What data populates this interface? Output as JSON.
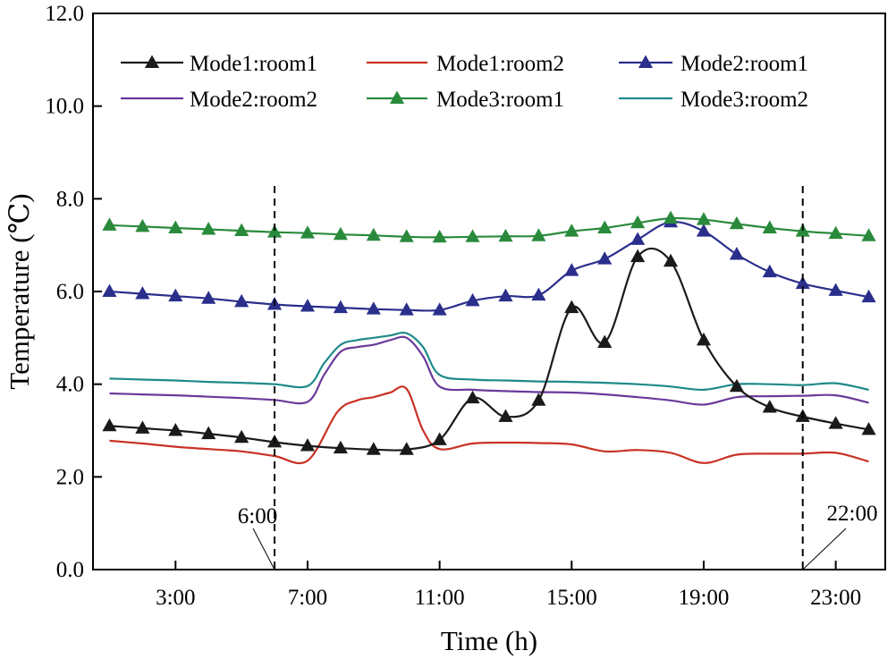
{
  "chart_data": {
    "type": "line",
    "title": "",
    "xlabel": "Time (h)",
    "ylabel": "Temperature (℃)",
    "ylim": [
      0,
      12
    ],
    "xlim": [
      0.5,
      24.5
    ],
    "y_ticks": [
      0,
      2,
      4,
      6,
      8,
      10,
      12
    ],
    "y_tick_labels": [
      "0.0",
      "2.0",
      "4.0",
      "6.0",
      "8.0",
      "10.0",
      "12.0"
    ],
    "x_ticks": [
      3,
      7,
      11,
      15,
      19,
      23
    ],
    "x_tick_labels": [
      "3:00",
      "7:00",
      "11:00",
      "15:00",
      "19:00",
      "23:00"
    ],
    "legend_position": "top",
    "grid": false,
    "series": [
      {
        "name": "Mode1:room1",
        "color": "#1a1a1a",
        "marker": "triangle",
        "smooth": true,
        "x": [
          1,
          2,
          3,
          4,
          5,
          6,
          7,
          8,
          9,
          10,
          11,
          12,
          13,
          14,
          15,
          16,
          17,
          18,
          19,
          20,
          21,
          22,
          23,
          24
        ],
        "values": [
          3.1,
          3.05,
          3.0,
          2.93,
          2.85,
          2.75,
          2.67,
          2.62,
          2.59,
          2.59,
          2.8,
          3.7,
          3.3,
          3.65,
          5.65,
          4.9,
          6.75,
          6.65,
          4.95,
          3.95,
          3.5,
          3.3,
          3.15,
          3.02
        ]
      },
      {
        "name": "Mode1:room2",
        "color": "#c83224",
        "marker": "none",
        "smooth": true,
        "x": [
          1,
          2,
          3,
          4,
          5,
          6,
          7,
          7.9,
          8.5,
          9,
          9.5,
          10,
          10.5,
          11,
          12,
          13,
          14,
          15,
          16,
          17,
          18,
          19,
          20,
          21,
          22,
          23,
          24
        ],
        "values": [
          2.78,
          2.72,
          2.65,
          2.6,
          2.55,
          2.45,
          2.35,
          3.4,
          3.65,
          3.72,
          3.82,
          3.9,
          3.0,
          2.6,
          2.72,
          2.74,
          2.73,
          2.7,
          2.55,
          2.58,
          2.52,
          2.3,
          2.48,
          2.5,
          2.5,
          2.52,
          2.33
        ]
      },
      {
        "name": "Mode2:room1",
        "color": "#2a2f8c",
        "marker": "triangle",
        "smooth": true,
        "x": [
          1,
          2,
          3,
          4,
          5,
          6,
          7,
          8,
          9,
          10,
          11,
          12,
          13,
          14,
          15,
          16,
          17,
          18,
          19,
          20,
          21,
          22,
          23,
          24
        ],
        "values": [
          6.0,
          5.95,
          5.9,
          5.85,
          5.78,
          5.72,
          5.68,
          5.65,
          5.62,
          5.6,
          5.6,
          5.8,
          5.9,
          5.92,
          6.45,
          6.7,
          7.12,
          7.5,
          7.3,
          6.8,
          6.42,
          6.17,
          6.02,
          5.88
        ]
      },
      {
        "name": "Mode2:room2",
        "color": "#6a3a9a",
        "marker": "none",
        "smooth": true,
        "x": [
          1,
          2,
          3,
          4,
          5,
          6,
          7,
          7.5,
          8,
          8.5,
          9,
          9.5,
          10,
          10.5,
          11,
          12,
          13,
          14,
          15,
          16,
          17,
          18,
          19,
          20,
          21,
          22,
          23,
          24
        ],
        "values": [
          3.8,
          3.78,
          3.76,
          3.73,
          3.7,
          3.66,
          3.62,
          4.2,
          4.7,
          4.8,
          4.85,
          4.95,
          5.0,
          4.6,
          3.95,
          3.88,
          3.85,
          3.83,
          3.82,
          3.78,
          3.72,
          3.65,
          3.56,
          3.72,
          3.74,
          3.75,
          3.76,
          3.6
        ]
      },
      {
        "name": "Mode3:room1",
        "color": "#2a8a3c",
        "marker": "triangle",
        "smooth": true,
        "x": [
          1,
          2,
          3,
          4,
          5,
          6,
          7,
          8,
          9,
          10,
          11,
          12,
          13,
          14,
          15,
          16,
          17,
          18,
          19,
          20,
          21,
          22,
          23,
          24
        ],
        "values": [
          7.43,
          7.4,
          7.37,
          7.34,
          7.31,
          7.28,
          7.26,
          7.23,
          7.21,
          7.18,
          7.17,
          7.18,
          7.19,
          7.2,
          7.3,
          7.37,
          7.48,
          7.58,
          7.55,
          7.46,
          7.37,
          7.3,
          7.25,
          7.2
        ]
      },
      {
        "name": "Mode3:room2",
        "color": "#1f8a8a",
        "marker": "none",
        "smooth": true,
        "x": [
          1,
          2,
          3,
          4,
          5,
          6,
          7,
          7.5,
          8,
          8.5,
          9,
          9.5,
          10,
          10.5,
          11,
          12,
          13,
          14,
          15,
          16,
          17,
          18,
          19,
          20,
          21,
          22,
          23,
          24
        ],
        "values": [
          4.12,
          4.1,
          4.08,
          4.05,
          4.03,
          4.0,
          3.96,
          4.45,
          4.85,
          4.95,
          5.0,
          5.05,
          5.1,
          4.8,
          4.2,
          4.1,
          4.08,
          4.06,
          4.05,
          4.03,
          4.0,
          3.95,
          3.88,
          4.0,
          4.0,
          3.98,
          4.02,
          3.88
        ]
      }
    ],
    "annotations": [
      {
        "text": "6:00",
        "x": 6,
        "style": "dashed-vertical"
      },
      {
        "text": "22:00",
        "x": 22,
        "style": "dashed-vertical"
      }
    ]
  }
}
